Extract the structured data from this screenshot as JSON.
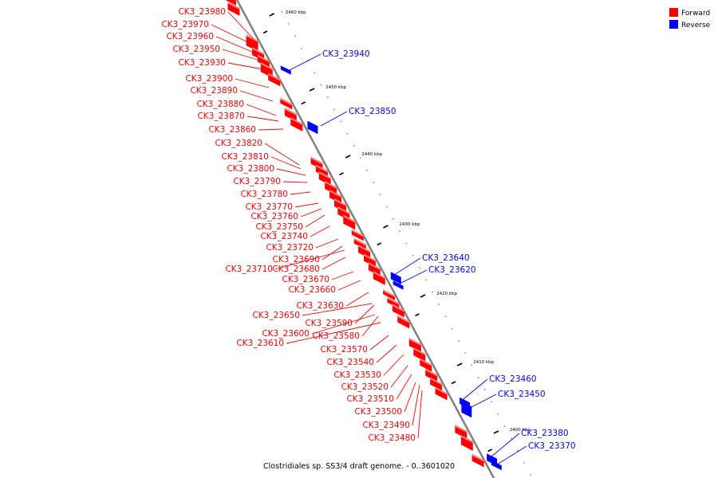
{
  "legend": {
    "items": [
      {
        "label": "Forward",
        "color": "#ff0000"
      },
      {
        "label": "Reverse",
        "color": "#0000ff"
      }
    ]
  },
  "caption": "Clostridiales sp. SS3/4 draft genome. - 0..3601020",
  "colors": {
    "forward": "#ff0000",
    "reverse": "#0000ff",
    "backbone": "#808080"
  },
  "ticks": [
    {
      "label": "2460 kbp",
      "kbp": 2460
    },
    {
      "label": "2450 kbp",
      "kbp": 2450
    },
    {
      "label": "2440 kbp",
      "kbp": 2440
    },
    {
      "label": "2430 kbp",
      "kbp": 2430
    },
    {
      "label": "2420 kbp",
      "kbp": 2420
    },
    {
      "label": "2410 kbp",
      "kbp": 2410
    },
    {
      "label": "2400 kbp",
      "kbp": 2400
    }
  ],
  "forward_labels": [
    "CK3_23980",
    "CK3_23970",
    "CK3_23960",
    "CK3_23950",
    "CK3_23930",
    "CK3_23900",
    "CK3_23890",
    "CK3_23880",
    "CK3_23870",
    "CK3_23860",
    "CK3_23820",
    "CK3_23810",
    "CK3_23800",
    "CK3_23790",
    "CK3_23780",
    "CK3_23770",
    "CK3_23760",
    "CK3_23750",
    "CK3_23740",
    "CK3_23720",
    "CK3_23690",
    "CK3_23710",
    "CK3_23680",
    "CK3_23670",
    "CK3_23660",
    "CK3_23630",
    "CK3_23650",
    "CK3_23590",
    "CK3_23600",
    "CK3_23580",
    "CK3_23610",
    "CK3_23570",
    "CK3_23540",
    "CK3_23530",
    "CK3_23520",
    "CK3_23510",
    "CK3_23500",
    "CK3_23490",
    "CK3_23480"
  ],
  "reverse_labels": [
    "CK3_23940",
    "CK3_23850",
    "CK3_23640",
    "CK3_23620",
    "CK3_23460",
    "CK3_23450",
    "CK3_23380",
    "CK3_23370"
  ]
}
